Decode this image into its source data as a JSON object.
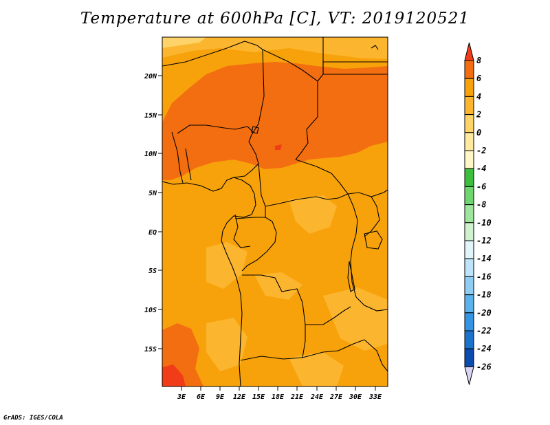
{
  "title": "Temperature at 600hPa [C], VT: 2019120521",
  "footer": "GrADS: IGES/COLA",
  "map": {
    "lat_labels": [
      "20N",
      "15N",
      "10N",
      "5N",
      "EQ",
      "5S",
      "10S",
      "15S"
    ],
    "lon_labels": [
      "3E",
      "6E",
      "9E",
      "12E",
      "15E",
      "18E",
      "21E",
      "24E",
      "27E",
      "30E",
      "33E"
    ]
  },
  "colorbar": {
    "labels": [
      "8",
      "6",
      "4",
      "2",
      "0",
      "-2",
      "-4",
      "-6",
      "-8",
      "-10",
      "-12",
      "-14",
      "-16",
      "-18",
      "-20",
      "-22",
      "-24",
      "-26"
    ],
    "colors": [
      "#f03c18",
      "#f36e10",
      "#f7a20a",
      "#fbb52e",
      "#fdd36a",
      "#ffeaa0",
      "#fff7c5",
      "#3cbf3c",
      "#6fd66f",
      "#9ee69e",
      "#cdf2cd",
      "#e2f5fb",
      "#bde4f8",
      "#8fcdf2",
      "#5cb2ec",
      "#3395e3",
      "#1b73cc",
      "#0c4cb0",
      "#081f7a",
      "#d8d4f2"
    ]
  }
}
